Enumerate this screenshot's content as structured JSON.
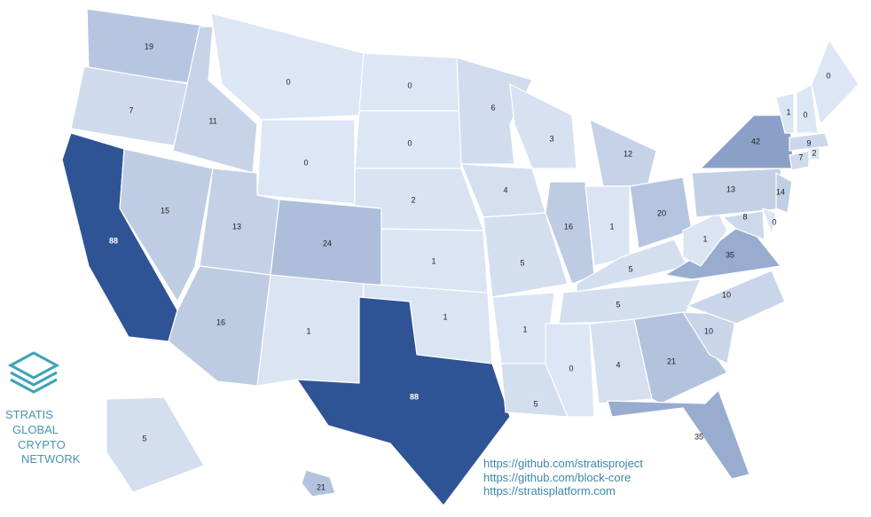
{
  "map": {
    "values": [
      19,
      7,
      88,
      11,
      15,
      0,
      0,
      13,
      16,
      24,
      1,
      0,
      0,
      2,
      1,
      1,
      88,
      6,
      4,
      5,
      1,
      5,
      3,
      16,
      12,
      1,
      20,
      5,
      5,
      0,
      4,
      21,
      35,
      10,
      10,
      35,
      1,
      13,
      42,
      8,
      0,
      14,
      7,
      9,
      2,
      1,
      0,
      0,
      5,
      21
    ],
    "color_scale": [
      "#dde6f4",
      "#2f5496"
    ]
  },
  "logo": {
    "lines": [
      "STRATIS",
      "GLOBAL",
      "CRYPTO",
      "NETWORK"
    ]
  },
  "links": [
    "https://github.com/stratisproject",
    "https://github.com/block-core",
    "https://stratisplatform.com"
  ]
}
